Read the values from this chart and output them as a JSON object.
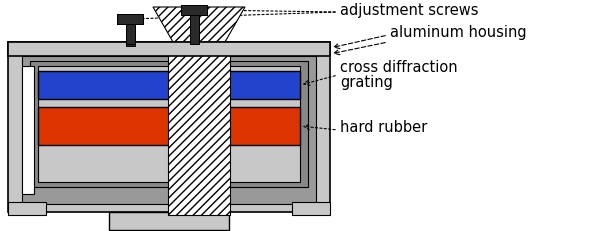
{
  "bg_color": "#ffffff",
  "lg": "#c8c8c8",
  "mg": "#999999",
  "dg": "#888888",
  "inner_gray": "#b0b0b0",
  "blue": "#2244cc",
  "red": "#dd3300",
  "black": "#000000",
  "white": "#ffffff",
  "screw": "#2a2a2a",
  "labels": {
    "adjustment_screws": "adjustment screws",
    "aluminum_housing": "aluminum housing",
    "cross_diffraction": "cross diffraction",
    "grating": "grating",
    "hard_rubber": "hard rubber"
  }
}
